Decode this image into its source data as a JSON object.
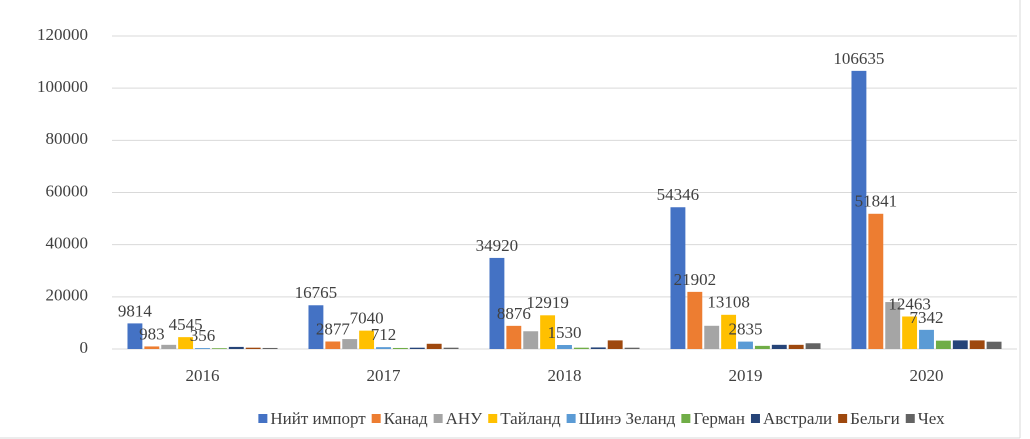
{
  "chart_data": {
    "type": "bar",
    "categories": [
      "2016",
      "2017",
      "2018",
      "2019",
      "2020"
    ],
    "series": [
      {
        "name": "Нийт импорт",
        "color": "#4472c4",
        "values": [
          9814,
          16765,
          34920,
          54346,
          106635
        ],
        "value_labels": [
          "9814",
          "16765",
          "34920",
          "54346",
          "106635"
        ]
      },
      {
        "name": "Канад",
        "color": "#ed7d31",
        "values": [
          983,
          2877,
          8876,
          21902,
          51841
        ],
        "value_labels": [
          "983",
          "2877",
          "8876",
          "21902",
          "51841"
        ]
      },
      {
        "name": "АНУ",
        "color": "#a5a5a5",
        "values": [
          1600,
          3800,
          6800,
          8900,
          18000
        ]
      },
      {
        "name": "Тайланд",
        "color": "#ffc000",
        "values": [
          4545,
          7040,
          12919,
          13108,
          12463
        ],
        "value_labels": [
          "4545",
          "7040",
          "12919",
          "13108",
          "12463"
        ]
      },
      {
        "name": "Шинэ Зеланд",
        "color": "#5b9bd5",
        "values": [
          356,
          712,
          1530,
          2835,
          7342
        ],
        "value_labels": [
          "356",
          "712",
          "1530",
          "2835",
          "7342"
        ]
      },
      {
        "name": "Герман",
        "color": "#70ad47",
        "values": [
          300,
          400,
          500,
          1200,
          3200
        ]
      },
      {
        "name": "Австрали",
        "color": "#264478",
        "values": [
          800,
          500,
          600,
          1600,
          3300
        ]
      },
      {
        "name": "Бельги",
        "color": "#9e480e",
        "values": [
          500,
          2000,
          3300,
          1600,
          3300
        ]
      },
      {
        "name": "Чех",
        "color": "#636363",
        "values": [
          400,
          500,
          500,
          2200,
          2800
        ]
      }
    ],
    "ylim": [
      0,
      120000
    ],
    "yticks": [
      0,
      20000,
      40000,
      60000,
      80000,
      100000,
      120000
    ],
    "grid": true,
    "legend": "bottom"
  }
}
